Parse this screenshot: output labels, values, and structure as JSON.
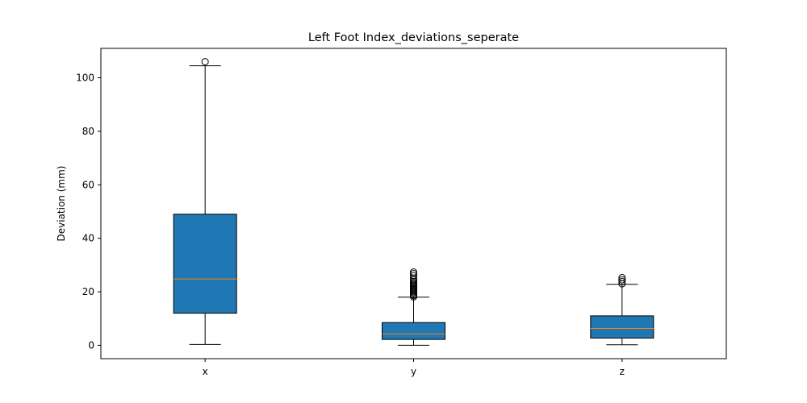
{
  "chart_data": {
    "type": "box",
    "title": "Left Foot Index_deviations_seperate",
    "xlabel": "",
    "ylabel": "Deviation (mm)",
    "ylim": [
      -5,
      111
    ],
    "yticks": [
      0,
      20,
      40,
      60,
      80,
      100
    ],
    "categories": [
      "x",
      "y",
      "z"
    ],
    "grid": false,
    "colors": {
      "box_fill": "#1f77b4",
      "median": "#ff7f0e",
      "stroke": "#000000"
    },
    "series": [
      {
        "category": "x",
        "whisker_low": 0.3,
        "q1": 12.0,
        "median": 24.8,
        "q3": 49.0,
        "whisker_high": 104.5,
        "outliers": [
          106.0
        ]
      },
      {
        "category": "y",
        "whisker_low": 0.0,
        "q1": 2.2,
        "median": 4.3,
        "q3": 8.5,
        "whisker_high": 18.0,
        "outliers": [
          18.1,
          18.6,
          19.0,
          19.6,
          20.0,
          20.4,
          20.8,
          21.2,
          21.6,
          22.0,
          22.4,
          22.8,
          23.3,
          23.8,
          24.4,
          25.1,
          26.0,
          26.8,
          27.4
        ]
      },
      {
        "category": "z",
        "whisker_low": 0.2,
        "q1": 2.7,
        "median": 6.3,
        "q3": 11.0,
        "whisker_high": 22.8,
        "outliers": [
          23.0,
          23.8,
          24.5,
          25.3
        ]
      }
    ]
  }
}
